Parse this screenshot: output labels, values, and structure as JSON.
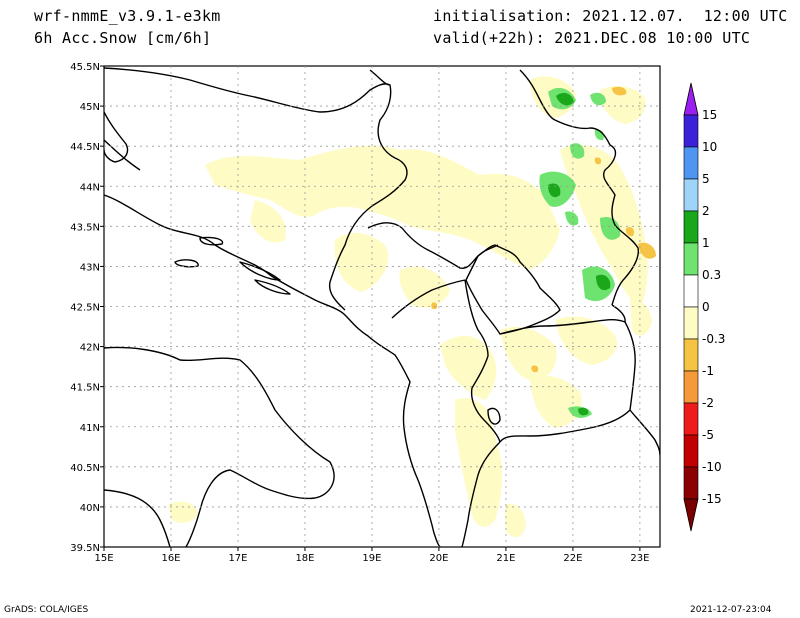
{
  "header": {
    "model": "wrf-nmmE_v3.9.1-e3km",
    "field": "6h Acc.Snow [cm/6h]",
    "init": "initialisation: 2021.12.07.  12:00 UTC",
    "valid": "valid(+22h): 2021.DEC.08 10:00 UTC"
  },
  "footer": {
    "left": "GrADS: COLA/IGES",
    "right": "2021-12-07-23:04"
  },
  "axes": {
    "lon_labels": [
      "15E",
      "16E",
      "17E",
      "18E",
      "19E",
      "20E",
      "21E",
      "22E",
      "23E"
    ],
    "lon_values": [
      15,
      16,
      17,
      18,
      19,
      20,
      21,
      22,
      23
    ],
    "lat_labels": [
      "45.5N",
      "45N",
      "44.5N",
      "44N",
      "43.5N",
      "43N",
      "42.5N",
      "42N",
      "41.5N",
      "41N",
      "40.5N",
      "40N",
      "39.5N"
    ],
    "lat_values": [
      45.5,
      45,
      44.5,
      44,
      43.5,
      43,
      42.5,
      42,
      41.5,
      41,
      40.5,
      40,
      39.5
    ],
    "lon_range": [
      15,
      23.3
    ],
    "lat_range": [
      39.5,
      45.5
    ],
    "grid": true
  },
  "colorbar": {
    "labels": [
      "15",
      "10",
      "5",
      "2",
      "1",
      "0.3",
      "0",
      "-0.3",
      "-1",
      "-2",
      "-5",
      "-10",
      "-15"
    ],
    "colors": [
      "#3b22d9",
      "#4f95f2",
      "#9fd3f7",
      "#1aa81a",
      "#6fe36f",
      "#ffffff",
      "#fffbc4",
      "#f5c444",
      "#f59a3a",
      "#ee1b1b",
      "#c10000",
      "#8b0000"
    ],
    "top_arrow_color": "#9a1ff0",
    "bottom_arrow_color": "#7a0000"
  },
  "colors": {
    "light_yellow": "#fffbc4",
    "orange": "#f5c444",
    "light_green": "#6fe36f",
    "dark_green": "#1aa81a"
  }
}
